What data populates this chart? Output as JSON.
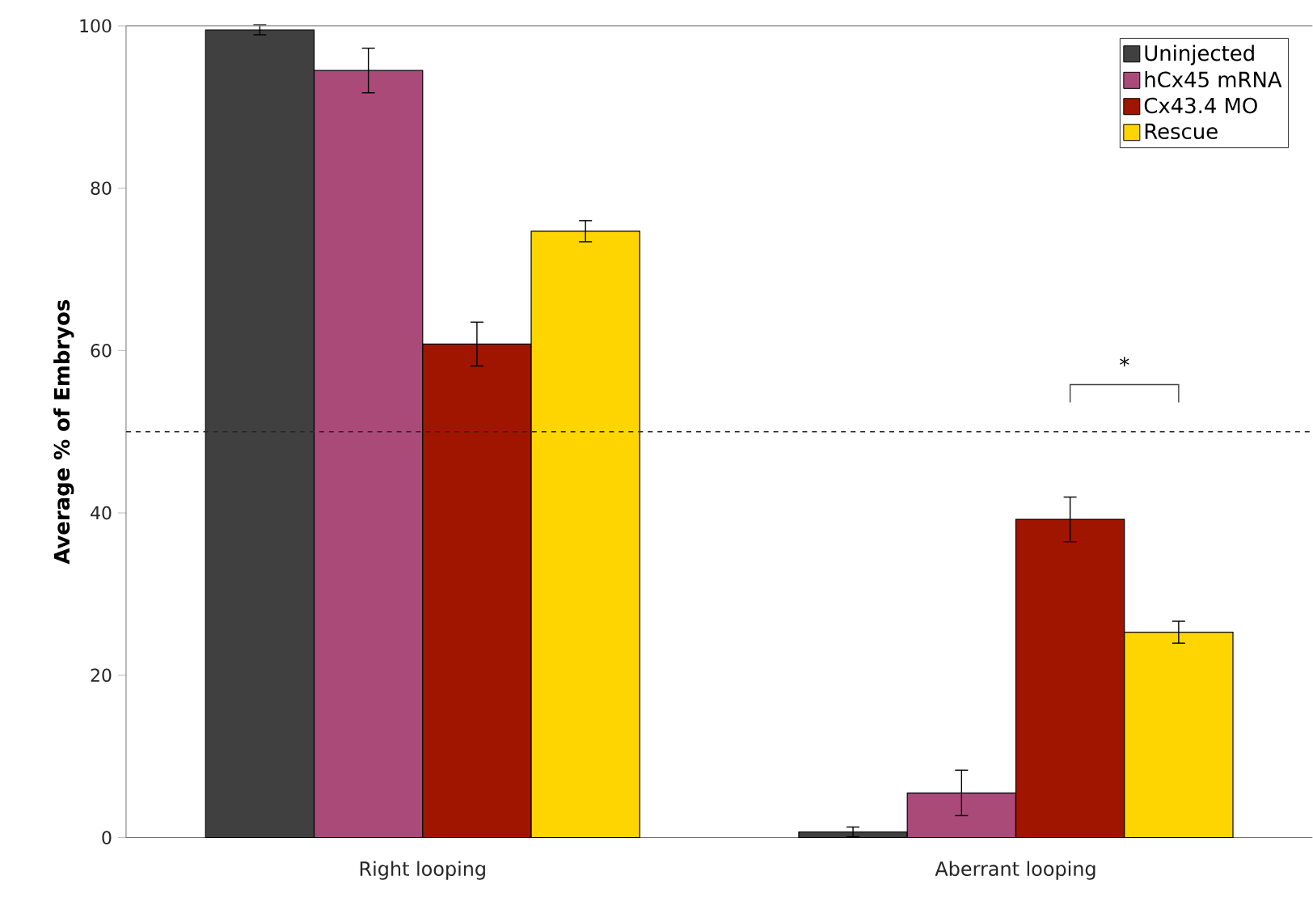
{
  "chart_data": {
    "type": "bar",
    "ylabel": "Average % of Embryos",
    "categories": [
      "Right looping",
      "Aberrant looping"
    ],
    "series": [
      {
        "name": "Uninjected",
        "color": "#404040",
        "values": [
          99.5,
          0.7
        ],
        "errors": [
          0.6,
          0.6
        ]
      },
      {
        "name": "hCx45 mRNA",
        "color": "#a94a78",
        "values": [
          94.5,
          5.5
        ],
        "errors": [
          2.75,
          2.8
        ]
      },
      {
        "name": "Cx43.4 MO",
        "color": "#a01500",
        "values": [
          60.8,
          39.2
        ],
        "errors": [
          2.7,
          2.75
        ]
      },
      {
        "name": "Rescue",
        "color": "#ffd500",
        "values": [
          74.7,
          25.3
        ],
        "errors": [
          1.3,
          1.35
        ]
      }
    ],
    "ylim": [
      0,
      100
    ],
    "yticks": [
      0,
      20,
      40,
      60,
      80,
      100
    ],
    "ref_lines": [
      {
        "axis": "y",
        "value": 50,
        "line_style": "dashed"
      }
    ],
    "annotations": [
      "*"
    ],
    "legend": "top right",
    "grid": false
  }
}
